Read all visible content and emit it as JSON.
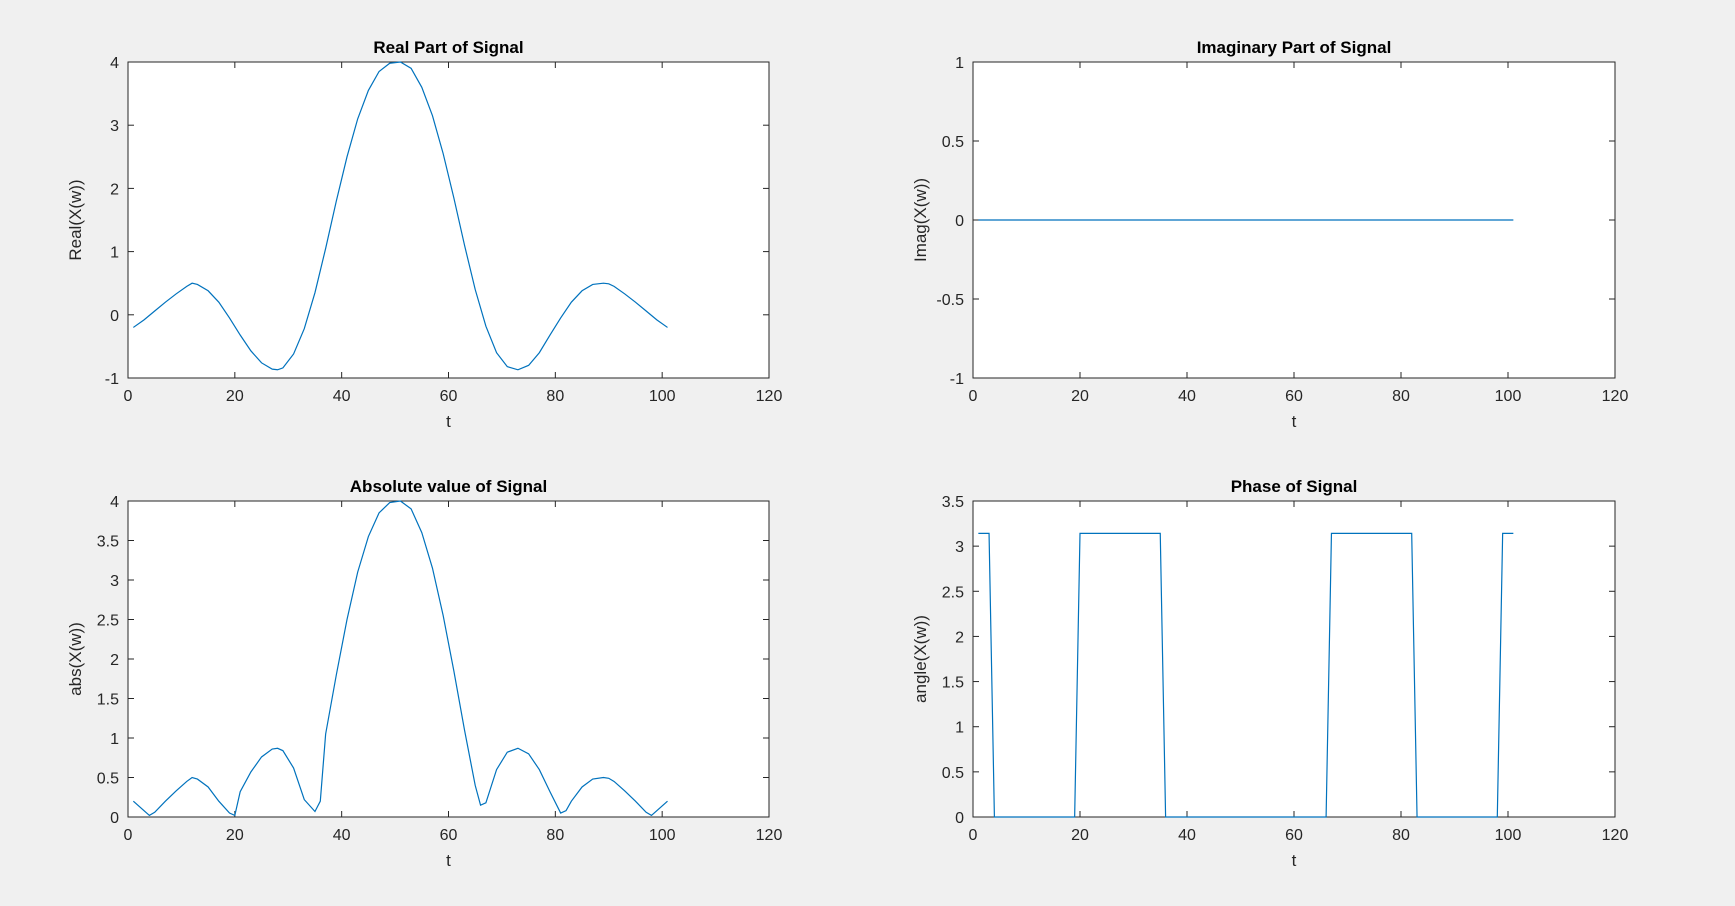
{
  "colors": {
    "background": "#f0f0f0",
    "axes_background": "#ffffff",
    "axes": "#262626",
    "series": "#0072bd"
  },
  "chart_data": [
    {
      "id": "real",
      "type": "line",
      "title": "Real Part of Signal",
      "xlabel": "t",
      "ylabel": "Real(X(w))",
      "xlim": [
        0,
        120
      ],
      "ylim": [
        -1,
        4
      ],
      "xticks": [
        0,
        20,
        40,
        60,
        80,
        100,
        120
      ],
      "yticks": [
        -1,
        0,
        1,
        2,
        3,
        4
      ],
      "grid": false,
      "series": [
        {
          "x": [
            1,
            3,
            5,
            7,
            9,
            11,
            12,
            13,
            15,
            17,
            19,
            21,
            23,
            25,
            27,
            28,
            29,
            31,
            33,
            35,
            37,
            39,
            41,
            43,
            45,
            47,
            49,
            51,
            53,
            55,
            57,
            59,
            61,
            63,
            65,
            67,
            69,
            71,
            73,
            75,
            77,
            79,
            81,
            83,
            85,
            87,
            89,
            90,
            91,
            93,
            95,
            97,
            99,
            101
          ],
          "y": [
            -0.2,
            -0.08,
            0.06,
            0.2,
            0.33,
            0.45,
            0.5,
            0.48,
            0.38,
            0.2,
            -0.05,
            -0.32,
            -0.57,
            -0.76,
            -0.86,
            -0.87,
            -0.84,
            -0.62,
            -0.22,
            0.35,
            1.05,
            1.8,
            2.5,
            3.1,
            3.55,
            3.85,
            3.98,
            4.0,
            3.9,
            3.6,
            3.15,
            2.55,
            1.85,
            1.1,
            0.4,
            -0.18,
            -0.6,
            -0.82,
            -0.87,
            -0.8,
            -0.6,
            -0.32,
            -0.05,
            0.2,
            0.38,
            0.48,
            0.5,
            0.49,
            0.45,
            0.33,
            0.2,
            0.06,
            -0.08,
            -0.2
          ]
        }
      ]
    },
    {
      "id": "imag",
      "type": "line",
      "title": "Imaginary Part of Signal",
      "xlabel": "t",
      "ylabel": "Imag(X(w))",
      "xlim": [
        0,
        120
      ],
      "ylim": [
        -1,
        1
      ],
      "xticks": [
        0,
        20,
        40,
        60,
        80,
        100,
        120
      ],
      "yticks": [
        -1,
        -0.5,
        0,
        0.5,
        1
      ],
      "grid": false,
      "series": [
        {
          "x": [
            1,
            101
          ],
          "y": [
            0,
            0
          ]
        }
      ]
    },
    {
      "id": "abs",
      "type": "line",
      "title": "Absolute value of Signal",
      "xlabel": "t",
      "ylabel": "abs(X(w))",
      "xlim": [
        0,
        120
      ],
      "ylim": [
        0,
        4
      ],
      "xticks": [
        0,
        20,
        40,
        60,
        80,
        100,
        120
      ],
      "yticks": [
        0,
        0.5,
        1,
        1.5,
        2,
        2.5,
        3,
        3.5,
        4
      ],
      "grid": false,
      "series": [
        {
          "x": [
            1,
            3,
            4,
            5,
            7,
            9,
            11,
            12,
            13,
            15,
            17,
            19,
            20,
            21,
            23,
            25,
            27,
            28,
            29,
            31,
            33,
            35,
            36,
            37,
            39,
            41,
            43,
            45,
            47,
            49,
            51,
            53,
            55,
            57,
            59,
            61,
            63,
            65,
            66,
            67,
            69,
            71,
            73,
            75,
            77,
            79,
            81,
            82,
            83,
            85,
            87,
            89,
            90,
            91,
            93,
            95,
            97,
            98,
            99,
            101
          ],
          "y": [
            0.2,
            0.08,
            0.02,
            0.06,
            0.2,
            0.33,
            0.45,
            0.5,
            0.48,
            0.38,
            0.2,
            0.05,
            0.02,
            0.32,
            0.57,
            0.76,
            0.86,
            0.87,
            0.84,
            0.62,
            0.22,
            0.07,
            0.2,
            1.05,
            1.8,
            2.5,
            3.1,
            3.55,
            3.85,
            3.98,
            4.0,
            3.9,
            3.6,
            3.15,
            2.55,
            1.85,
            1.1,
            0.4,
            0.15,
            0.18,
            0.6,
            0.82,
            0.87,
            0.8,
            0.6,
            0.32,
            0.05,
            0.08,
            0.2,
            0.38,
            0.48,
            0.5,
            0.49,
            0.45,
            0.33,
            0.2,
            0.06,
            0.02,
            0.08,
            0.2
          ]
        }
      ]
    },
    {
      "id": "phase",
      "type": "line",
      "title": "Phase of Signal",
      "xlabel": "t",
      "ylabel": "angle(X(w))",
      "xlim": [
        0,
        120
      ],
      "ylim": [
        0,
        3.5
      ],
      "xticks": [
        0,
        20,
        40,
        60,
        80,
        100,
        120
      ],
      "yticks": [
        0,
        0.5,
        1,
        1.5,
        2,
        2.5,
        3,
        3.5
      ],
      "grid": false,
      "series": [
        {
          "x": [
            1,
            3,
            4,
            19,
            20,
            35,
            36,
            66,
            67,
            82,
            83,
            98,
            99,
            101
          ],
          "y": [
            3.1416,
            3.1416,
            0,
            0,
            3.1416,
            3.1416,
            0,
            0,
            3.1416,
            3.1416,
            0,
            0,
            3.1416,
            3.1416
          ]
        }
      ]
    }
  ]
}
